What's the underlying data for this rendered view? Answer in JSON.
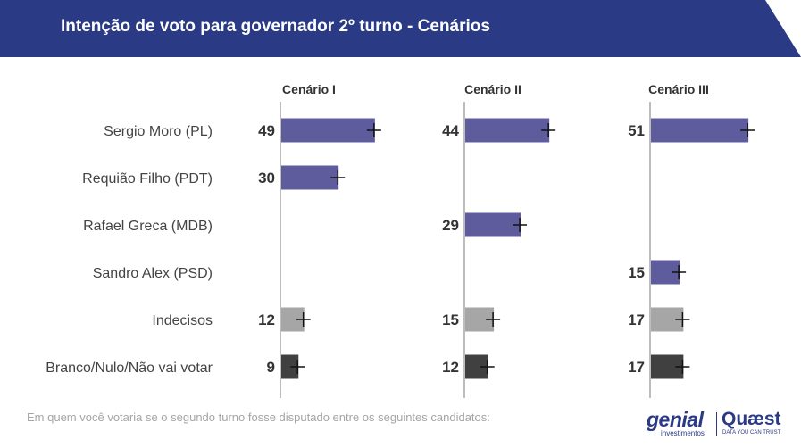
{
  "header": {
    "title": "Intenção de voto para governador 2º turno - Cenários"
  },
  "footnote": "Em quem você votaria se o segundo turno fosse disputado entre os seguintes candidatos:",
  "logos": {
    "genial": "genial",
    "genial_sub": "investimentos",
    "quaest": "Quæst",
    "quaest_sub": "DATA YOU CAN TRUST"
  },
  "colors": {
    "header": "#2a3a84",
    "candidate": "#5f5c9e",
    "undecided": "#a6a6a6",
    "blank": "#404040",
    "error_bar": "#111111",
    "axis": "#bdbdbd"
  },
  "chart_data": {
    "type": "bar",
    "orientation": "horizontal",
    "title": "Intenção de voto para governador 2º turno - Cenários",
    "categories": [
      "Sergio Moro (PL)",
      "Requião Filho (PDT)",
      "Rafael Greca (MDB)",
      "Sandro Alex (PSD)",
      "Indecisos",
      "Branco/Nulo/Não vai votar"
    ],
    "category_kind": [
      "candidate",
      "candidate",
      "candidate",
      "candidate",
      "undecided",
      "blank"
    ],
    "error_bars": true,
    "series": [
      {
        "name": "Cenário I",
        "values": [
          49,
          30,
          null,
          null,
          12,
          9
        ]
      },
      {
        "name": "Cenário II",
        "values": [
          44,
          null,
          29,
          null,
          15,
          12
        ]
      },
      {
        "name": "Cenário III",
        "values": [
          51,
          null,
          null,
          15,
          17,
          17
        ]
      }
    ]
  }
}
